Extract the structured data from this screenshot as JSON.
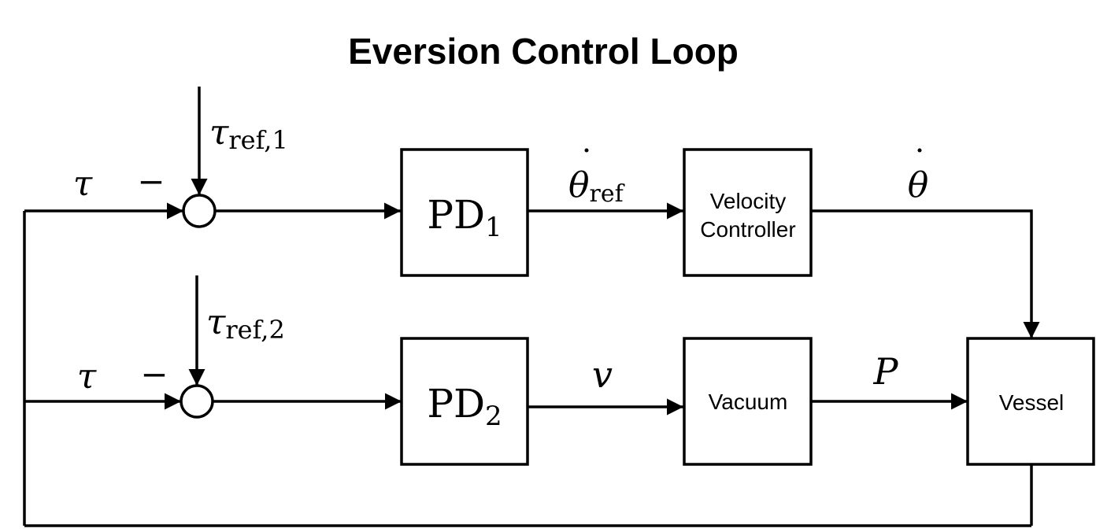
{
  "title": "Eversion Control Loop",
  "signals": {
    "tau": "τ",
    "minus": "−",
    "tau_ref_1": {
      "base": "τ",
      "sub": "ref,1"
    },
    "tau_ref_2": {
      "base": "τ",
      "sub": "ref,2"
    },
    "theta_dot_ref": {
      "base": "θ",
      "dot": "˙",
      "sub": "ref"
    },
    "theta_dot": {
      "base": "θ",
      "dot": "˙"
    },
    "v": "v",
    "P": "P"
  },
  "blocks": {
    "pd1": {
      "base": "PD",
      "sub": "1"
    },
    "pd2": {
      "base": "PD",
      "sub": "2"
    },
    "velocity_controller": {
      "line1": "Velocity",
      "line2": "Controller"
    },
    "vacuum": "Vacuum",
    "vessel": "Vessel"
  }
}
